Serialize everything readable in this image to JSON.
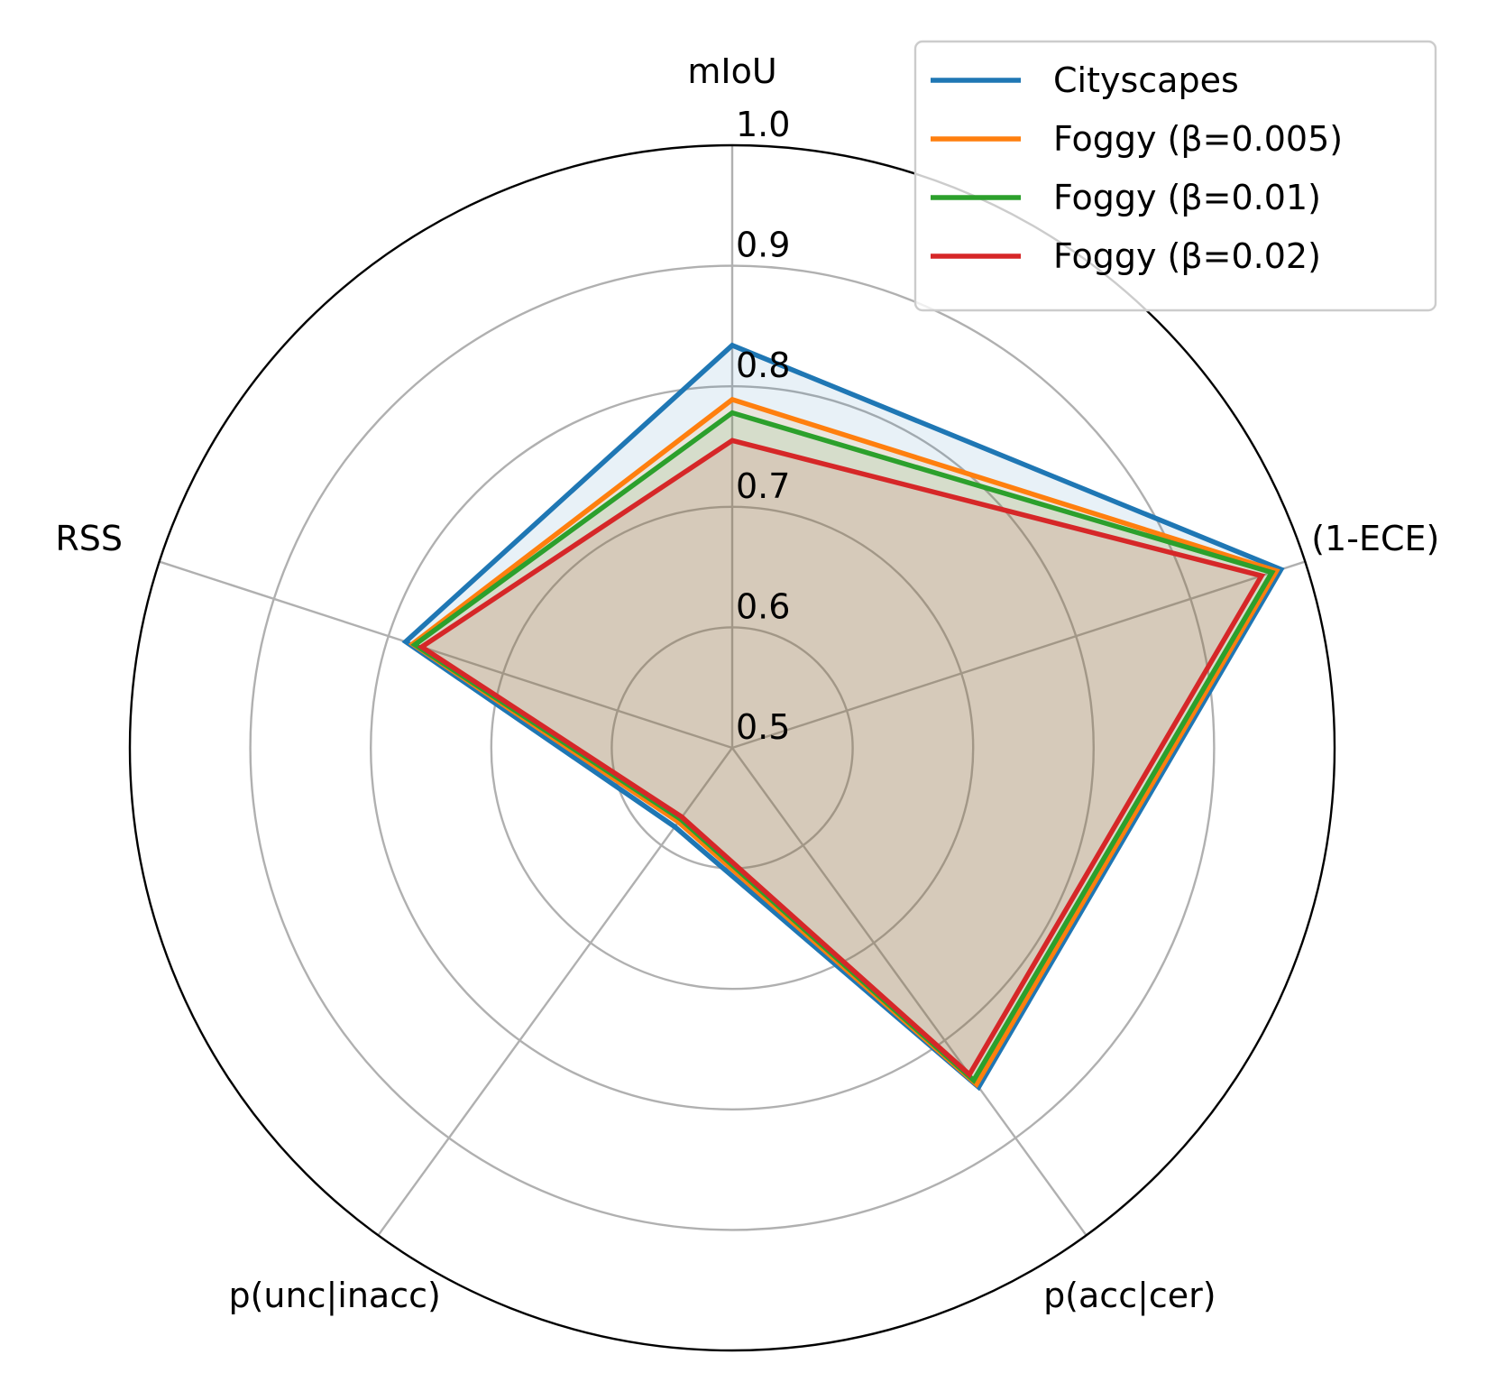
{
  "chart_data": {
    "type": "radar",
    "title": "",
    "axes": [
      "mIoU",
      "(1-ECE)",
      "p(acc|cer)",
      "p(unc|inacc)",
      "RSS"
    ],
    "rlim": [
      0.5,
      1.0
    ],
    "rticks": [
      0.5,
      0.6,
      0.7,
      0.8,
      0.9,
      1.0
    ],
    "rtick_labels": [
      "0.5",
      "0.6",
      "0.7",
      "0.8",
      "0.9",
      "1.0"
    ],
    "grid": true,
    "legend_position": "top-right",
    "series": [
      {
        "name": "Cityscapes",
        "color": "#1f77b4",
        "values": [
          0.834,
          0.979,
          0.848,
          0.581,
          0.785
        ],
        "fill": true
      },
      {
        "name": "Foggy (β=0.005)",
        "color": "#ff7f0e",
        "values": [
          0.789,
          0.975,
          0.845,
          0.576,
          0.779
        ],
        "fill": true
      },
      {
        "name": "Foggy (β=0.01)",
        "color": "#2ca02c",
        "values": [
          0.778,
          0.971,
          0.841,
          0.573,
          0.777
        ],
        "fill": true
      },
      {
        "name": "Foggy (β=0.02)",
        "color": "#d62728",
        "values": [
          0.755,
          0.962,
          0.835,
          0.571,
          0.771
        ],
        "fill": true
      }
    ]
  }
}
